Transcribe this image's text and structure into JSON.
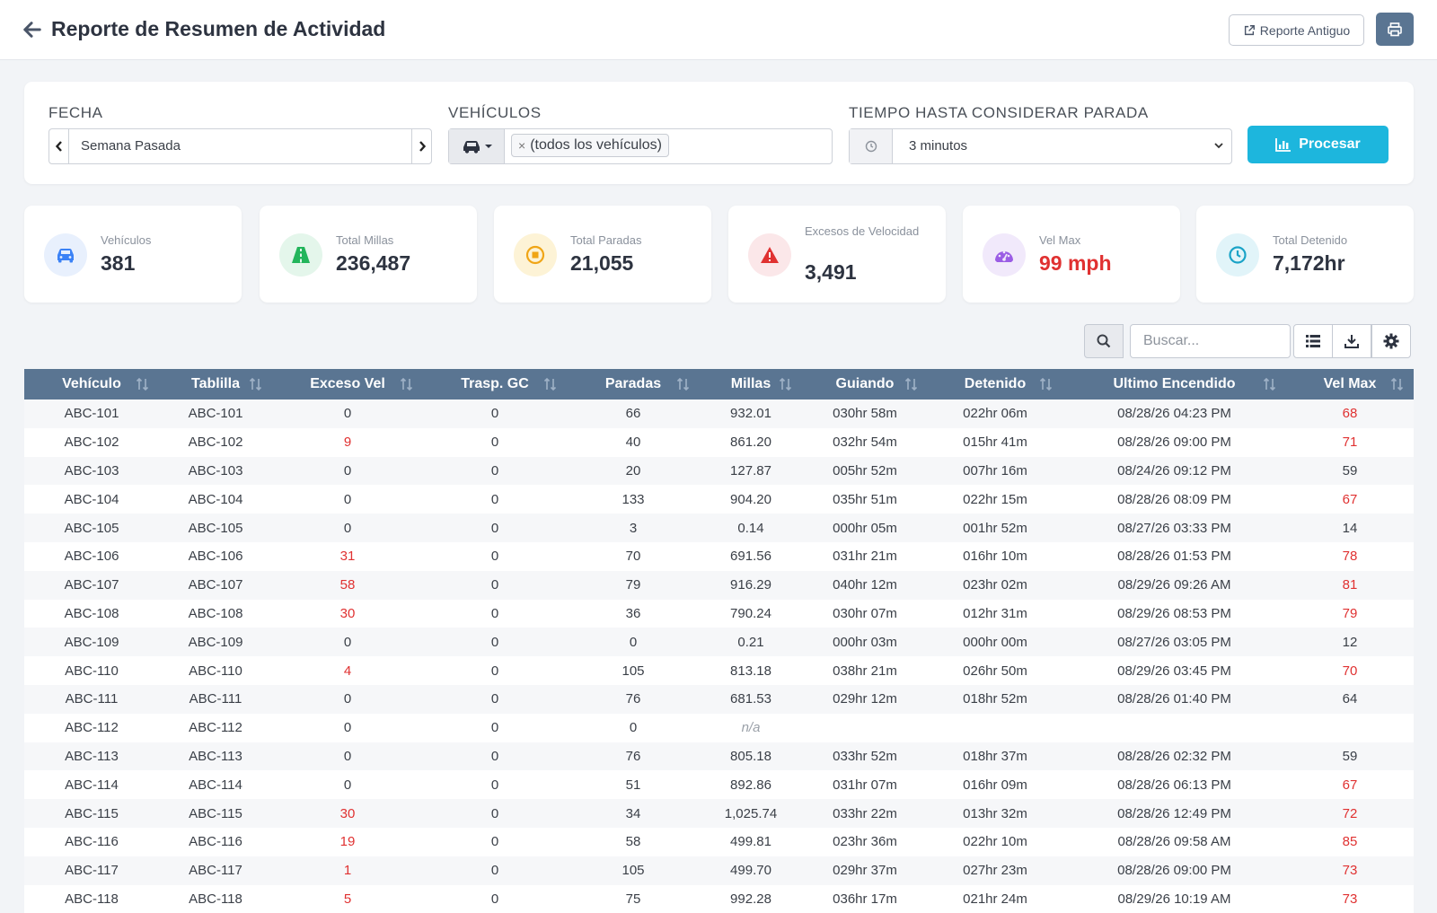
{
  "header": {
    "title": "Reporte de Resumen de Actividad",
    "old_report_label": "Reporte Antiguo"
  },
  "filters": {
    "date_label": "FECHA",
    "date_value": "Semana Pasada",
    "vehicles_label": "VEHÍCULOS",
    "vehicles_tag": "(todos los vehículos)",
    "stop_label": "TIEMPO HASTA CONSIDERAR PARADA",
    "stop_value": "3 minutos",
    "process_label": "Procesar"
  },
  "stats": [
    {
      "label": "Vehículos",
      "value": "381",
      "icon": "car-icon",
      "color": "#3b82f6",
      "bg": "#e8f0fd"
    },
    {
      "label": "Total Millas",
      "value": "236,487",
      "icon": "road-icon",
      "color": "#22b55b",
      "bg": "#e4f6eb"
    },
    {
      "label": "Total Paradas",
      "value": "21,055",
      "icon": "stop-circle-icon",
      "color": "#f0a515",
      "bg": "#fdf3d6"
    },
    {
      "label": "Excesos de Velocidad",
      "value": "3,491",
      "icon": "warning-icon",
      "color": "#e03131",
      "bg": "#fbe7e9"
    },
    {
      "label": "Vel Max",
      "value": "99 mph",
      "icon": "speedometer-icon",
      "color": "#9b5de5",
      "bg": "#f1e9fb"
    },
    {
      "label": "Total Detenido",
      "value": "7,172hr",
      "icon": "clock-icon",
      "color": "#1aa3c7",
      "bg": "#e1f4f9"
    }
  ],
  "search": {
    "placeholder": "Buscar..."
  },
  "table": {
    "columns": [
      "Vehículo",
      "Tablilla",
      "Exceso Vel",
      "Trasp. GC",
      "Paradas",
      "Millas",
      "Guiando",
      "Detenido",
      "Ultimo Encendido",
      "Vel Max"
    ],
    "rows": [
      [
        "ABC-101",
        "ABC-101",
        "0",
        "0",
        "66",
        "932.01",
        "030hr 58m",
        "022hr 06m",
        "08/28/26 04:23 PM",
        "68"
      ],
      [
        "ABC-102",
        "ABC-102",
        "9",
        "0",
        "40",
        "861.20",
        "032hr 54m",
        "015hr 41m",
        "08/28/26 09:00 PM",
        "71"
      ],
      [
        "ABC-103",
        "ABC-103",
        "0",
        "0",
        "20",
        "127.87",
        "005hr 52m",
        "007hr 16m",
        "08/24/26 09:12 PM",
        "59"
      ],
      [
        "ABC-104",
        "ABC-104",
        "0",
        "0",
        "133",
        "904.20",
        "035hr 51m",
        "022hr 15m",
        "08/28/26 08:09 PM",
        "67"
      ],
      [
        "ABC-105",
        "ABC-105",
        "0",
        "0",
        "3",
        "0.14",
        "000hr 05m",
        "001hr 52m",
        "08/27/26 03:33 PM",
        "14"
      ],
      [
        "ABC-106",
        "ABC-106",
        "31",
        "0",
        "70",
        "691.56",
        "031hr 21m",
        "016hr 10m",
        "08/28/26 01:53 PM",
        "78"
      ],
      [
        "ABC-107",
        "ABC-107",
        "58",
        "0",
        "79",
        "916.29",
        "040hr 12m",
        "023hr 02m",
        "08/29/26 09:26 AM",
        "81"
      ],
      [
        "ABC-108",
        "ABC-108",
        "30",
        "0",
        "36",
        "790.24",
        "030hr 07m",
        "012hr 31m",
        "08/29/26 08:53 PM",
        "79"
      ],
      [
        "ABC-109",
        "ABC-109",
        "0",
        "0",
        "0",
        "0.21",
        "000hr 03m",
        "000hr 00m",
        "08/27/26 03:05 PM",
        "12"
      ],
      [
        "ABC-110",
        "ABC-110",
        "4",
        "0",
        "105",
        "813.18",
        "038hr 21m",
        "026hr 50m",
        "08/29/26 03:45 PM",
        "70"
      ],
      [
        "ABC-111",
        "ABC-111",
        "0",
        "0",
        "76",
        "681.53",
        "029hr 12m",
        "018hr 52m",
        "08/28/26 01:40 PM",
        "64"
      ],
      [
        "ABC-112",
        "ABC-112",
        "0",
        "0",
        "0",
        "n/a",
        "",
        "",
        "",
        ""
      ],
      [
        "ABC-113",
        "ABC-113",
        "0",
        "0",
        "76",
        "805.18",
        "033hr 52m",
        "018hr 37m",
        "08/28/26 02:32 PM",
        "59"
      ],
      [
        "ABC-114",
        "ABC-114",
        "0",
        "0",
        "51",
        "892.86",
        "031hr 07m",
        "016hr 09m",
        "08/28/26 06:13 PM",
        "67"
      ],
      [
        "ABC-115",
        "ABC-115",
        "30",
        "0",
        "34",
        "1,025.74",
        "033hr 22m",
        "013hr 32m",
        "08/28/26 12:49 PM",
        "72"
      ],
      [
        "ABC-116",
        "ABC-116",
        "19",
        "0",
        "58",
        "499.81",
        "023hr 36m",
        "022hr 10m",
        "08/28/26 09:58 AM",
        "85"
      ],
      [
        "ABC-117",
        "ABC-117",
        "1",
        "0",
        "105",
        "499.70",
        "029hr 37m",
        "027hr 23m",
        "08/28/26 09:00 PM",
        "73"
      ],
      [
        "ABC-118",
        "ABC-118",
        "5",
        "0",
        "75",
        "992.28",
        "036hr 17m",
        "021hr 24m",
        "08/29/26 10:19 AM",
        "73"
      ]
    ]
  },
  "colors": {
    "header_blue": "#5a7592",
    "accent": "#1db6dd",
    "danger": "#e03131"
  }
}
